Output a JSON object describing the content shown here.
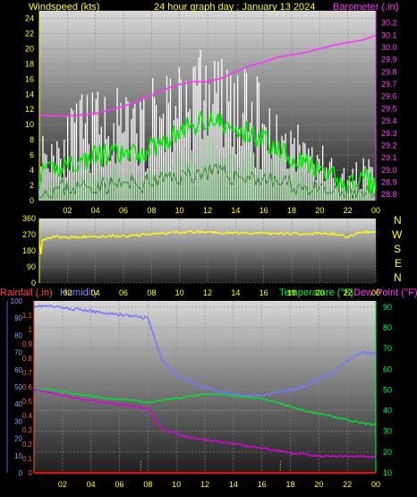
{
  "header": {
    "left_title": "Windspeed (kts)",
    "center_title": "24 hour graph day : January 13 2024",
    "right_title": "Barometer (.in)"
  },
  "compass": [
    "N",
    "W",
    "S",
    "E",
    "N"
  ],
  "legend": {
    "rain": "Rainfall (.in)",
    "humidity": "Humidity",
    "temperature": "Temperature (°F)",
    "dewpoint": "Dew Point (°F)"
  },
  "colors": {
    "wind_gust": "#ffffff",
    "wind_avg": "#00ee00",
    "wind_fill": "#b8f0b8",
    "barometer": "#ff33ff",
    "direction": "#ffff00",
    "humidity": "#7777ff",
    "temperature": "#00dd33",
    "dewpoint": "#dd00dd",
    "rain": "#ff0000",
    "rain_axis": "#ff5555",
    "temp_axis": "#00ff44",
    "axis_text": "#ffff00"
  },
  "x_ticks": [
    "02",
    "04",
    "06",
    "08",
    "10",
    "12",
    "14",
    "16",
    "18",
    "20",
    "22",
    "00"
  ],
  "chart_data": [
    {
      "type": "line",
      "title": "Windspeed (kts)",
      "ylabel": "Windspeed (kts)",
      "ylim": [
        0,
        25
      ],
      "y_ticks": [
        0,
        2,
        4,
        6,
        8,
        10,
        12,
        14,
        16,
        18,
        20,
        22,
        24
      ],
      "y2label": "Barometer (.in)",
      "y2lim": [
        28.75,
        30.3
      ],
      "y2_ticks": [
        28.8,
        28.9,
        29.0,
        29.1,
        29.2,
        29.3,
        29.4,
        29.5,
        29.6,
        29.7,
        29.8,
        29.9,
        30.0,
        30.1,
        30.2
      ],
      "x": [
        0,
        1,
        2,
        3,
        4,
        5,
        6,
        7,
        8,
        9,
        10,
        11,
        12,
        13,
        14,
        15,
        16,
        17,
        18,
        19,
        20,
        21,
        22,
        23,
        24
      ],
      "series": [
        {
          "name": "Wind gust",
          "values": [
            9,
            11,
            12,
            14,
            15,
            16,
            14,
            14,
            16,
            19,
            20,
            21,
            22,
            20,
            19,
            17,
            16,
            12,
            12,
            10,
            8,
            6,
            4,
            6,
            5
          ]
        },
        {
          "name": "Wind average",
          "values": [
            3,
            4,
            5,
            5,
            6,
            6,
            6,
            6,
            7,
            8,
            9,
            10,
            11,
            10,
            9,
            9,
            8,
            7,
            6,
            5,
            3.5,
            3,
            2,
            3,
            2
          ]
        },
        {
          "name": "Barometer",
          "values": [
            29.45,
            29.44,
            29.44,
            29.45,
            29.46,
            29.49,
            29.52,
            29.56,
            29.61,
            29.66,
            29.7,
            29.72,
            29.72,
            29.75,
            29.8,
            29.85,
            29.88,
            29.92,
            29.94,
            29.96,
            29.99,
            30.02,
            30.04,
            30.06,
            30.1
          ]
        }
      ]
    },
    {
      "type": "line",
      "title": "Wind direction",
      "ylim": [
        0,
        360
      ],
      "y_ticks": [
        0,
        90,
        180,
        270,
        360
      ],
      "x": [
        0,
        1,
        2,
        3,
        4,
        5,
        6,
        7,
        8,
        9,
        10,
        11,
        12,
        13,
        14,
        15,
        16,
        17,
        18,
        19,
        20,
        21,
        22,
        23,
        24
      ],
      "series": [
        {
          "name": "Wind direction",
          "values": [
            240,
            255,
            255,
            258,
            260,
            262,
            262,
            265,
            272,
            278,
            282,
            285,
            284,
            282,
            280,
            278,
            278,
            276,
            274,
            275,
            278,
            272,
            260,
            282,
            288
          ]
        }
      ]
    },
    {
      "type": "line",
      "title": "Humidity / Temperature / Dew Point / Rainfall",
      "ylim": [
        0,
        100
      ],
      "y_ticks": [
        0,
        10,
        20,
        30,
        40,
        50,
        60,
        70,
        80,
        90,
        100
      ],
      "y_rain_lim": [
        0,
        1.2
      ],
      "y_rain_ticks": [
        0,
        0.1,
        0.2,
        0.3,
        0.4,
        0.5,
        0.6,
        0.7,
        0.8,
        0.9,
        1,
        1.1
      ],
      "y2lim": [
        10,
        93
      ],
      "y2_ticks": [
        10,
        20,
        30,
        40,
        50,
        60,
        70,
        80,
        90
      ],
      "x": [
        0,
        1,
        2,
        3,
        4,
        5,
        6,
        7,
        8,
        9,
        10,
        11,
        12,
        13,
        14,
        15,
        16,
        17,
        18,
        19,
        20,
        21,
        22,
        23,
        24
      ],
      "series": [
        {
          "name": "Humidity",
          "values": [
            97,
            97,
            96,
            95,
            94,
            93,
            92,
            91,
            90,
            65,
            57,
            53,
            50,
            47,
            46,
            45,
            45,
            47,
            48,
            50,
            55,
            58,
            65,
            70,
            69
          ]
        },
        {
          "name": "Temperature",
          "values": [
            50.5,
            50,
            49,
            48,
            47,
            46,
            45.5,
            45,
            44,
            45,
            46,
            47,
            48,
            48,
            47,
            46.5,
            46,
            44,
            42,
            40,
            38.5,
            37,
            35.5,
            34,
            33
          ]
        },
        {
          "name": "Dew Point",
          "values": [
            50,
            49,
            47.5,
            46,
            45,
            44,
            43,
            42,
            41,
            31,
            29,
            27,
            26,
            25,
            24,
            23,
            22,
            21,
            19.5,
            19,
            18,
            18,
            18,
            18,
            17.5
          ]
        },
        {
          "name": "Rainfall",
          "values": [
            0,
            0,
            0,
            0,
            0,
            0,
            0,
            0,
            0,
            0,
            0,
            0,
            0,
            0,
            0,
            0,
            0,
            0,
            0,
            0,
            0,
            0,
            0,
            0,
            0
          ]
        }
      ]
    }
  ]
}
